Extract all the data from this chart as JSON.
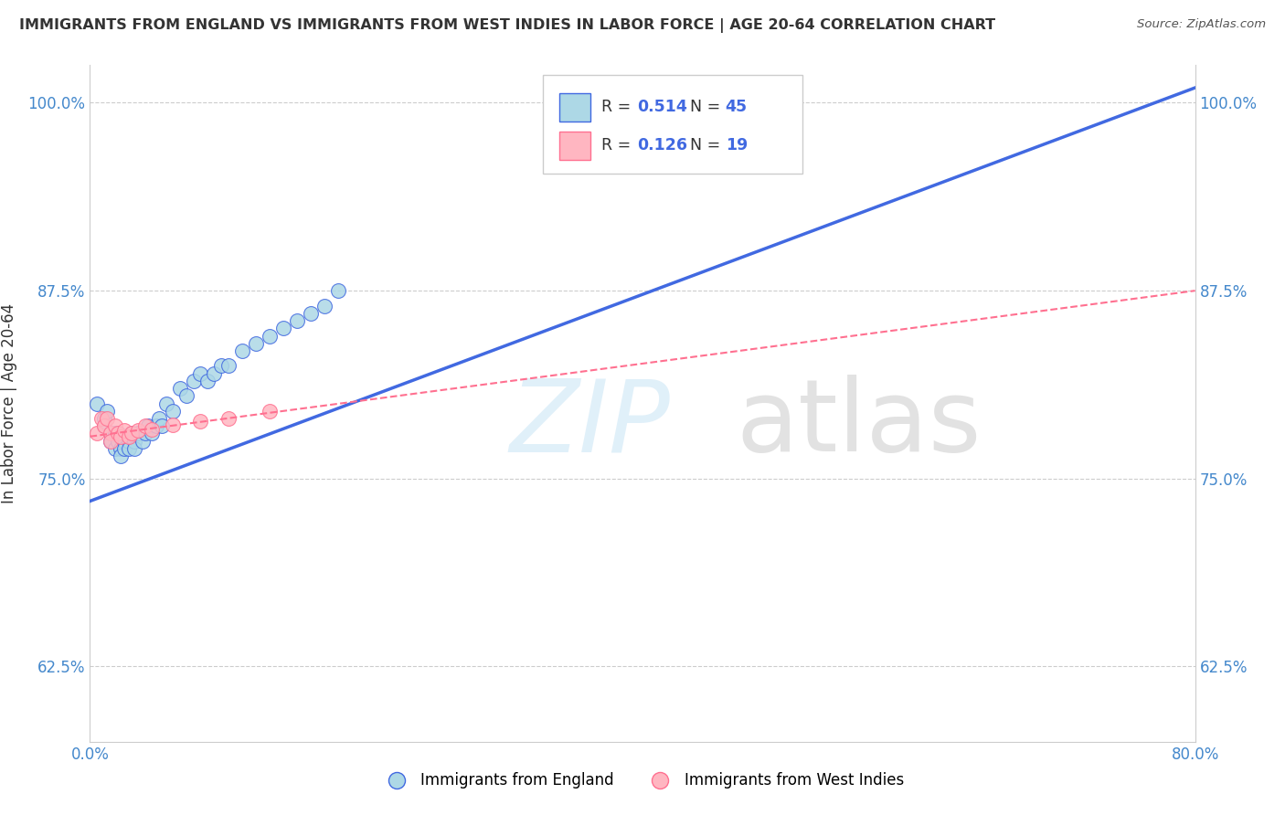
{
  "title": "IMMIGRANTS FROM ENGLAND VS IMMIGRANTS FROM WEST INDIES IN LABOR FORCE | AGE 20-64 CORRELATION CHART",
  "source": "Source: ZipAtlas.com",
  "ylabel": "In Labor Force | Age 20-64",
  "legend_bottom": [
    "Immigrants from England",
    "Immigrants from West Indies"
  ],
  "england_R": 0.514,
  "england_N": 45,
  "westindies_R": 0.126,
  "westindies_N": 19,
  "england_color": "#ADD8E6",
  "westindies_color": "#FFB6C1",
  "england_line_color": "#4169E1",
  "westindies_line_color": "#FF7090",
  "background_color": "#FFFFFF",
  "grid_color": "#CCCCCC",
  "xlim": [
    0.0,
    0.8
  ],
  "ylim": [
    0.575,
    1.025
  ],
  "x_tick_labels": [
    "0.0%",
    "80.0%"
  ],
  "y_ticks": [
    0.625,
    0.75,
    0.875,
    1.0
  ],
  "y_tick_labels": [
    "62.5%",
    "75.0%",
    "87.5%",
    "100.0%"
  ],
  "england_x": [
    0.005,
    0.01,
    0.01,
    0.012,
    0.015,
    0.015,
    0.018,
    0.018,
    0.02,
    0.02,
    0.022,
    0.022,
    0.025,
    0.025,
    0.028,
    0.028,
    0.03,
    0.032,
    0.032,
    0.035,
    0.038,
    0.04,
    0.042,
    0.045,
    0.048,
    0.05,
    0.052,
    0.055,
    0.06,
    0.065,
    0.07,
    0.075,
    0.08,
    0.085,
    0.09,
    0.095,
    0.1,
    0.11,
    0.12,
    0.13,
    0.14,
    0.15,
    0.16,
    0.17,
    0.18
  ],
  "england_y": [
    0.8,
    0.79,
    0.785,
    0.795,
    0.78,
    0.775,
    0.78,
    0.77,
    0.78,
    0.775,
    0.77,
    0.765,
    0.775,
    0.77,
    0.775,
    0.77,
    0.78,
    0.775,
    0.77,
    0.78,
    0.775,
    0.78,
    0.785,
    0.78,
    0.785,
    0.79,
    0.785,
    0.8,
    0.795,
    0.81,
    0.805,
    0.815,
    0.82,
    0.815,
    0.82,
    0.825,
    0.825,
    0.835,
    0.84,
    0.845,
    0.85,
    0.855,
    0.86,
    0.865,
    0.875
  ],
  "westindies_x": [
    0.005,
    0.008,
    0.01,
    0.012,
    0.015,
    0.015,
    0.018,
    0.02,
    0.022,
    0.025,
    0.028,
    0.03,
    0.035,
    0.04,
    0.045,
    0.06,
    0.08,
    0.1,
    0.13
  ],
  "westindies_y": [
    0.78,
    0.79,
    0.785,
    0.79,
    0.78,
    0.775,
    0.785,
    0.78,
    0.778,
    0.782,
    0.778,
    0.78,
    0.782,
    0.785,
    0.783,
    0.786,
    0.788,
    0.79,
    0.795
  ],
  "eng_line_x0": 0.0,
  "eng_line_y0": 0.735,
  "eng_line_x1": 0.8,
  "eng_line_y1": 1.01,
  "wi_line_x0": 0.0,
  "wi_line_y0": 0.778,
  "wi_line_x1": 0.8,
  "wi_line_y1": 0.875
}
